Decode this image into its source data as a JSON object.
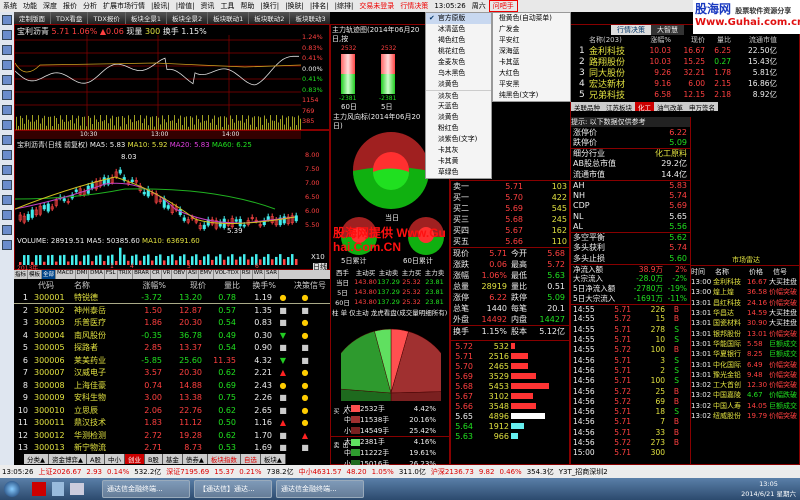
{
  "menubar": {
    "items": [
      "系统",
      "功能",
      "深度",
      "报价",
      "分析",
      "扩展市场行情",
      "|股讯|",
      "|增值|",
      "资讯",
      "工具",
      "帮助",
      "|换行|",
      "|换肤|",
      "|排名|",
      "|综排|"
    ],
    "trade_login": "交易未登录",
    "market": "行情决策",
    "time": "13:05:26",
    "weekday": "周六",
    "help_btn": "问吧手"
  },
  "tabs": [
    "定制版面",
    "TDX看盘",
    "TDX报价",
    "板块全景1",
    "板块全景2",
    "板块联动1",
    "板块联动2",
    "板块联动3",
    "个股联动",
    "盘中监测"
  ],
  "intraday": {
    "title": "宝利沥青",
    "price": "5.71",
    "pct": "1.06%",
    "chg": "▲0.06",
    "vol_label": "现量",
    "vol": "300",
    "turn": "换手 1.15%",
    "yaxis": [
      "1.24%",
      "0.83%",
      "0.41%",
      "0.00%",
      "0.41%",
      "0.83%",
      "1154",
      "769",
      "385"
    ],
    "times": [
      "10:30",
      "13:00",
      "14:00"
    ]
  },
  "kline": {
    "title": "宝利沥青(日线 前复权)",
    "ma5": "MA5: 5.83",
    "ma10": "MA10: 5.92",
    "ma20": "MA20: 5.83",
    "ma60": "MA60: 6.25",
    "high_mark": "8.03",
    "low_mark": "5.39",
    "yaxis": [
      "8.00",
      "7.50",
      "7.00",
      "6.50",
      "6.00",
      "5.50"
    ],
    "volume": "VOLUME: 28919.51",
    "vma5": "MA5: 50385.60",
    "vma10": "MA10: 63691.60",
    "xaxis": [
      "2013年",
      "1",
      "4",
      "5",
      "6"
    ],
    "period": "日线",
    "x10": "X10"
  },
  "indicators": [
    "指标",
    "模板",
    "全部",
    "MACD",
    "DMI",
    "DMA",
    "FSL",
    "TRIX",
    "BRAR",
    "CR",
    "VR",
    "OBV",
    "ASI",
    "EMV",
    "VOL-TDX",
    "RSI",
    "WR",
    "SAR"
  ],
  "list": {
    "headers": [
      "代码",
      "名称",
      "涨幅%",
      "现价",
      "量比",
      "换手%",
      "决策信号"
    ],
    "rows": [
      [
        "1",
        "300001",
        "特锐德",
        "-3.72",
        "13.20",
        "0.78",
        "1.19",
        "●",
        "●"
      ],
      [
        "2",
        "300002",
        "神州泰岳",
        "1.50",
        "12.87",
        "0.57",
        "1.35",
        "■",
        "■"
      ],
      [
        "3",
        "300003",
        "乐普医疗",
        "1.86",
        "20.30",
        "0.54",
        "0.83",
        "■",
        "●"
      ],
      [
        "4",
        "300004",
        "南风股份",
        "-0.35",
        "36.78",
        "0.49",
        "0.30",
        "▼",
        "●"
      ],
      [
        "5",
        "300005",
        "探路者",
        "2.85",
        "13.37",
        "0.54",
        "0.90",
        "■",
        "■"
      ],
      [
        "6",
        "300006",
        "莱美药业",
        "-5.85",
        "25.60",
        "11.35",
        "4.32",
        "▼",
        "■"
      ],
      [
        "7",
        "300007",
        "汉威电子",
        "3.57",
        "20.30",
        "0.62",
        "2.21",
        "▲",
        "●"
      ],
      [
        "8",
        "300008",
        "上海佳豪",
        "0.74",
        "14.88",
        "0.69",
        "2.43",
        "●",
        "●"
      ],
      [
        "9",
        "300009",
        "安科生物",
        "3.00",
        "13.38",
        "0.75",
        "2.26",
        "■",
        "●"
      ],
      [
        "10",
        "300010",
        "立思辰",
        "2.06",
        "22.76",
        "0.62",
        "2.65",
        "■",
        "●"
      ],
      [
        "11",
        "300011",
        "鼎汉技术",
        "1.83",
        "11.12",
        "0.50",
        "1.16",
        "▲",
        "●"
      ],
      [
        "12",
        "300012",
        "华测检测",
        "2.72",
        "19.28",
        "0.62",
        "1.70",
        "■",
        "▲"
      ],
      [
        "13",
        "300013",
        "新宁物流",
        "2.71",
        "8.73",
        "0.53",
        "1.69",
        "■",
        "■"
      ]
    ],
    "bottom_tabs": [
      "分类▲",
      "资金博弈▲",
      "A股",
      "中小",
      "创业",
      "B股",
      "基金",
      "债券▲",
      "板块指数",
      "自选",
      "板块▲"
    ]
  },
  "mid": {
    "track_title": "主力轨迹图(2014年06月20日,按",
    "bar_top": "2532",
    "bar_bot": "-2381",
    "bar_labels": [
      "60日",
      "5日"
    ],
    "vane_title": "主力风向标(2014年06月20日)",
    "today": "当日",
    "small": [
      "5日累计",
      "60日累计"
    ],
    "flow_headers": [
      "西手",
      "主动买",
      "主动卖",
      "主力买",
      "主力卖"
    ],
    "flow_rows": [
      [
        "当日",
        "143.80",
        "137.29",
        "25.32",
        "23.81"
      ],
      [
        "5日",
        "143.80",
        "137.29",
        "25.32",
        "23.81"
      ],
      [
        "60日",
        "143.80",
        "137.29",
        "25.32",
        "23.81"
      ]
    ],
    "pie_title": "柱 单 仅主动 龙虎看盘(成交量明细所有)",
    "buy_label": "买入",
    "sell_label": "卖出",
    "breakdown": [
      [
        "大",
        "2532手",
        "4.42%"
      ],
      [
        "中",
        "11538手",
        "20.16%"
      ],
      [
        "小",
        "14549手",
        "25.42%"
      ],
      [
        "大",
        "2381手",
        "4.16%"
      ],
      [
        "中",
        "11222手",
        "19.61%"
      ],
      [
        "小",
        "15016手",
        "26.23%"
      ]
    ],
    "pie": [
      4.42,
      20.16,
      25.42,
      26.23,
      19.61,
      4.16
    ],
    "pie_colors": [
      "#ff5050",
      "#a03030",
      "#7a2020",
      "#1e6a1e",
      "#2e9a2e",
      "#60e060"
    ]
  },
  "menu": {
    "items": [
      "官方原版",
      "冰清蓝色",
      "褐色红色",
      "桃花红色",
      "金麦灰色",
      "乌木黑色",
      "淡黄色",
      "淡灰色",
      "天蓝色",
      "淡黄色",
      "粉红色",
      "淡紫色(文字)",
      "卡其灰",
      "卡其黄",
      "草绿色"
    ],
    "checked": "官方原版",
    "sub": [
      "橙黄色(自动菜单)",
      "广发金",
      "平安红",
      "深海蓝",
      "卡其蓝",
      "大红色",
      "平安黑",
      "纯黑色(文字)"
    ]
  },
  "quote": {
    "book": [
      [
        "卖一",
        "5.71",
        "103"
      ],
      [
        "买一",
        "5.70",
        "422"
      ],
      [
        "买二",
        "5.69",
        "545"
      ],
      [
        "买三",
        "5.68",
        "245"
      ],
      [
        "买四",
        "5.67",
        "162"
      ],
      [
        "买五",
        "5.66",
        "110"
      ]
    ],
    "stats": [
      [
        "现价",
        "5.71",
        "今开",
        "5.68"
      ],
      [
        "涨跌",
        "0.06",
        "最高",
        "5.72"
      ],
      [
        "涨幅",
        "1.06%",
        "最低",
        "5.63"
      ],
      [
        "总量",
        "28919",
        "量比",
        "0.51"
      ],
      [
        "涨停",
        "6.22",
        "跌停",
        "5.09"
      ],
      [
        "总笔",
        "1440",
        "每笔",
        "20.1"
      ],
      [
        "外盘",
        "14492",
        "内盘",
        "14427"
      ],
      [
        "换手",
        "1.15%",
        "股本",
        "5.12亿"
      ]
    ],
    "ladder": [
      [
        "5.72",
        "532",
        0.1
      ],
      [
        "5.71",
        "2516",
        0.46
      ],
      [
        "5.70",
        "2465",
        0.45
      ],
      [
        "5.69",
        "3529",
        0.65
      ],
      [
        "5.68",
        "5453",
        1.0
      ],
      [
        "5.67",
        "3102",
        0.57
      ],
      [
        "5.66",
        "3548",
        0.65
      ],
      [
        "5.65",
        "4896",
        0.9
      ],
      [
        "5.64",
        "1912",
        0.35
      ],
      [
        "5.63",
        "966",
        0.18
      ]
    ]
  },
  "right": {
    "tabs": [
      "行情决策",
      "大智慧"
    ],
    "rank_header": [
      "名称(203)",
      "涨幅%",
      "现价",
      "量比",
      "流通市值"
    ],
    "rank": [
      [
        "1",
        "金利科技",
        "10.03",
        "16.67",
        "6.25",
        "22.50亿"
      ],
      [
        "2",
        "路翔股份",
        "10.03",
        "15.25",
        "0.27",
        "15.43亿"
      ],
      [
        "3",
        "同大股份",
        "9.26",
        "32.21",
        "1.78",
        "5.81亿"
      ],
      [
        "4",
        "宏达新材",
        "9.16",
        "6.00",
        "2.15",
        "16.86亿"
      ],
      [
        "5",
        "兄弟科技",
        "6.58",
        "12.15",
        "2.18",
        "8.92亿"
      ]
    ],
    "sector_tabs": [
      "关联品种",
      "江苏板块",
      "化工",
      "油气改革",
      "申万签名"
    ],
    "tip": "提示: 以下数据仅供参考",
    "info": [
      [
        "涨停价",
        "6.22"
      ],
      [
        "跌停价",
        "5.09"
      ],
      [
        "细分行业",
        "化工原料"
      ],
      [
        "AB股总市值",
        "29.2亿"
      ],
      [
        "流通市值",
        "14.4亿"
      ],
      [
        "AH",
        "5.83"
      ],
      [
        "NH",
        "5.74"
      ],
      [
        "CDP",
        "5.69"
      ],
      [
        "NL",
        "5.65"
      ],
      [
        "AL",
        "5.56"
      ],
      [
        "多空平衡",
        "5.62"
      ],
      [
        "多头获利",
        "5.74"
      ],
      [
        "多头止损",
        "5.60"
      ]
    ],
    "flows": [
      [
        "净流入额",
        "38.9万",
        "2%"
      ],
      [
        "大宗流入",
        "-28.0万",
        "-2%"
      ],
      [
        "5日净流入额",
        "-2780万",
        "-19%"
      ],
      [
        "5日大宗流入",
        "-1691万",
        "-11%"
      ]
    ],
    "ticks": [
      [
        "14:55",
        "5.71",
        "226",
        "B"
      ],
      [
        "14:55",
        "5.72",
        "15",
        "B"
      ],
      [
        "14:55",
        "5.71",
        "278",
        "S"
      ],
      [
        "14:55",
        "5.71",
        "10",
        "S"
      ],
      [
        "14:55",
        "5.72",
        "100",
        "B"
      ],
      [
        "14:56",
        "5.71",
        "3",
        "S"
      ],
      [
        "14:56",
        "5.71",
        "2",
        "S"
      ],
      [
        "14:56",
        "5.71",
        "100",
        "S"
      ],
      [
        "14:56",
        "5.72",
        "25",
        "B"
      ],
      [
        "14:56",
        "5.72",
        "69",
        "B"
      ],
      [
        "14:56",
        "5.71",
        "18",
        "S"
      ],
      [
        "14:56",
        "5.71",
        "7",
        "B"
      ],
      [
        "14:56",
        "5.71",
        "33",
        "B"
      ],
      [
        "14:56",
        "5.72",
        "273",
        "B"
      ],
      [
        "15:00",
        "5.71",
        "300",
        ""
      ]
    ],
    "radar_title": "市场雷达",
    "radar_header": [
      "时间",
      "名称",
      "价格",
      "信号"
    ],
    "radar": [
      [
        "13:00",
        "金利科技",
        "16.67",
        "大买挂盘"
      ],
      [
        "13:00",
        "煌上煌",
        "36.58",
        "价幅突破"
      ],
      [
        "13:01",
        "昌红科技",
        "24.16",
        "价幅突破"
      ],
      [
        "13:01",
        "华昌达",
        "14.59",
        "大买挂盘"
      ],
      [
        "13:01",
        "国瓷材料",
        "30.90",
        "大买挂盘"
      ],
      [
        "13:01",
        "银邦股份",
        "13.01",
        "价幅突破"
      ],
      [
        "13:01",
        "华能国际",
        "5.58",
        "巨额成交"
      ],
      [
        "13:01",
        "华夏银行",
        "8.25",
        "巨额成交"
      ],
      [
        "13:01",
        "中化国际",
        "6.49",
        "价幅突破"
      ],
      [
        "13:01",
        "豫光金铅",
        "9.48",
        "价幅突破"
      ],
      [
        "13:02",
        "工大首创",
        "12.30",
        "价幅突破"
      ],
      [
        "13:02",
        "中国嘉陵",
        "4.67",
        "价幅跌破"
      ],
      [
        "13:02",
        "中国人寿",
        "14.05",
        "巨额成交"
      ],
      [
        "13:02",
        "纽威股份",
        "19.79",
        "价幅突破"
      ]
    ]
  },
  "watermark": {
    "site": "股海网",
    "slogan": "股票软件资源分享",
    "url": "Www.Guhai.com.cn",
    "overlay": "股海网提供 Www.Guhai.Com.CN"
  },
  "status": {
    "items": [
      [
        "13:05:26",
        ""
      ],
      [
        "上证2026.67",
        "red"
      ],
      [
        "2.93",
        "red"
      ],
      [
        "0.14%",
        "red"
      ],
      [
        "532.2亿",
        ""
      ],
      [
        "深证7195.69",
        "red"
      ],
      [
        "15.37",
        "red"
      ],
      [
        "0.21%",
        "red"
      ],
      [
        "738.2亿",
        ""
      ],
      [
        "中小4631.57",
        "red"
      ],
      [
        "48.20",
        "red"
      ],
      [
        "1.05%",
        "red"
      ],
      [
        "311.0亿",
        ""
      ],
      [
        "沪深2136.73",
        "red"
      ],
      [
        "9.82",
        "red"
      ],
      [
        "0.46%",
        "red"
      ],
      [
        "354.3亿",
        ""
      ],
      [
        "Y3T_招商深圳2",
        ""
      ]
    ]
  },
  "taskbar": {
    "windows": [
      "通达信金融终端...",
      "【通达信】通达...",
      "通达信金融终端..."
    ],
    "time": "13:05",
    "date": "2014/6/21 星期六"
  }
}
